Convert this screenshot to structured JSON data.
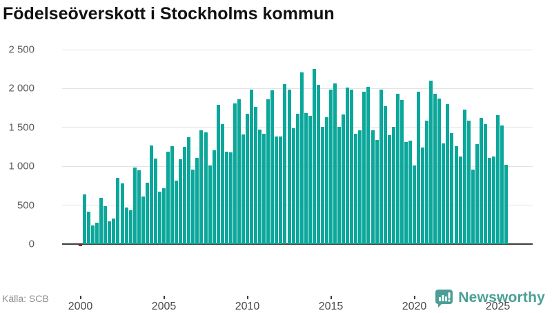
{
  "header": {
    "title": "Födelseöverskott i Stockholms kommun"
  },
  "footer": {
    "source_label": "Källa: SCB",
    "brand_name": "Newsworthy",
    "brand_color": "#4b9f96"
  },
  "chart_data": {
    "type": "bar",
    "title": "Födelseöverskott i Stockholms kommun",
    "xlabel": "",
    "ylabel": "",
    "start_year": 2000,
    "start_quarter": 1,
    "frequency": "quarterly",
    "values": [
      -25,
      640,
      415,
      240,
      275,
      590,
      490,
      295,
      330,
      850,
      780,
      470,
      435,
      985,
      945,
      610,
      790,
      1270,
      1095,
      670,
      720,
      1185,
      1260,
      820,
      1090,
      1250,
      1370,
      955,
      1110,
      1465,
      1440,
      1015,
      1205,
      1790,
      1540,
      1190,
      1180,
      1810,
      1865,
      1410,
      1675,
      1990,
      1765,
      1470,
      1415,
      1865,
      1980,
      1385,
      1385,
      2055,
      1990,
      1490,
      1675,
      2210,
      1685,
      1650,
      2255,
      2050,
      1510,
      1630,
      1985,
      2070,
      1510,
      1670,
      2010,
      1985,
      1420,
      1460,
      1955,
      2020,
      1465,
      1340,
      1985,
      1775,
      1400,
      1510,
      1930,
      1855,
      1315,
      1330,
      1015,
      1960,
      1240,
      1590,
      2100,
      1930,
      1870,
      1290,
      1800,
      1430,
      1260,
      1125,
      1725,
      1585,
      955,
      1285,
      1625,
      1540,
      1105,
      1125,
      1660,
      1525,
      1020
    ],
    "y_ticks": [
      0,
      500,
      1000,
      1500,
      2000,
      2500
    ],
    "y_tick_labels": [
      "0",
      "500",
      "1 000",
      "1 500",
      "2 000",
      "2 500"
    ],
    "x_tick_years": [
      2000,
      2005,
      2010,
      2015,
      2020,
      2025
    ],
    "x_tick_labels": [
      "2000",
      "2005",
      "2010",
      "2015",
      "2020",
      "2025"
    ],
    "ylim": [
      0,
      2500
    ],
    "grid": "horizontal",
    "legend": "none",
    "colors": {
      "positive": "#0aa79a",
      "negative": "#8e2420",
      "gridline": "#e3e3e3",
      "axis": "#3b3b3b"
    }
  }
}
